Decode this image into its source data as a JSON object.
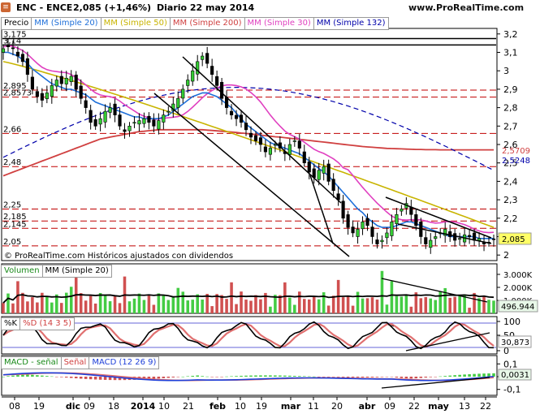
{
  "header": {
    "symbol": "ENC - ENCE",
    "price_change": "2,085 (+1,46%)",
    "period_date": "Diario  22 may 2014",
    "site": "www.ProRealTime.com"
  },
  "price_panel": {
    "legend": [
      "Precio",
      "MM (Simple 20)",
      "MM (Simple 50)",
      "MM (Simple 200)",
      "MM (Simple 30)",
      "MM (Simple 132)"
    ],
    "legend_colors": [
      "#000000",
      "#1e6fd9",
      "#c8b400",
      "#d04040",
      "#e040c0",
      "#0000aa"
    ],
    "footer_text": "© ProRealTime.com  Históricos ajustados con dividendos",
    "current_value": "2,085",
    "ma200_value": "2,5709",
    "ma132_value": "2,5248",
    "level_labels": [
      "3,175",
      "3,14",
      "2,895",
      "2,8573",
      "2,66",
      "2,48",
      "2,25",
      "2,185",
      "2,145",
      "2,05"
    ],
    "axis_ticks": [
      "3,2",
      "3,1",
      "3",
      "2,9",
      "2,8",
      "2,7",
      "2,6",
      "2,5",
      "2,4",
      "2,3",
      "2,2",
      "2,1",
      "2"
    ]
  },
  "volume_panel": {
    "legend": [
      "Volumen",
      "MM (Simple 20)"
    ],
    "current_value": "496.944",
    "axis_ticks": [
      "3.000K",
      "2.000K",
      "1.000K"
    ]
  },
  "stoch_panel": {
    "legend": [
      "%K",
      "%D (14 3 5)"
    ],
    "current_value": "30,873",
    "axis_ticks": [
      "100",
      "50",
      "0"
    ]
  },
  "macd_panel": {
    "legend": [
      "MACD - señal",
      "Señal",
      "MACD (12 26 9)"
    ],
    "current_value": "0,0031",
    "axis_ticks": [
      "0,1",
      "0",
      "-0,1"
    ]
  },
  "x_axis": {
    "labels": [
      "08",
      "19",
      "dic",
      "09",
      "18",
      "2014",
      "10",
      "21",
      "feb",
      "10",
      "19",
      "mar",
      "11",
      "20",
      "abr",
      "09",
      "22",
      "may",
      "13",
      "22"
    ]
  },
  "chart_data": {
    "type": "line",
    "title": "ENC - ENCE",
    "ylim": [
      1.97,
      3.23
    ],
    "close": [
      3.12,
      3.13,
      3.12,
      3.08,
      3.05,
      2.98,
      2.9,
      2.86,
      2.84,
      2.88,
      2.92,
      2.95,
      2.93,
      2.96,
      2.97,
      2.9,
      2.85,
      2.8,
      2.72,
      2.7,
      2.74,
      2.78,
      2.8,
      2.76,
      2.7,
      2.67,
      2.7,
      2.72,
      2.73,
      2.74,
      2.72,
      2.7,
      2.73,
      2.76,
      2.78,
      2.82,
      2.85,
      2.9,
      2.95,
      3.0,
      3.05,
      3.08,
      3.04,
      2.98,
      2.92,
      2.85,
      2.8,
      2.76,
      2.74,
      2.72,
      2.68,
      2.64,
      2.62,
      2.6,
      2.56,
      2.58,
      2.6,
      2.58,
      2.55,
      2.6,
      2.62,
      2.58,
      2.5,
      2.45,
      2.42,
      2.46,
      2.48,
      2.4,
      2.35,
      2.3,
      2.2,
      2.15,
      2.12,
      2.14,
      2.18,
      2.16,
      2.1,
      2.06,
      2.08,
      2.12,
      2.18,
      2.22,
      2.25,
      2.28,
      2.22,
      2.16,
      2.1,
      2.06,
      2.08,
      2.1,
      2.12,
      2.14,
      2.1,
      2.08,
      2.09,
      2.11,
      2.1,
      2.08,
      2.09,
      2.06,
      2.07,
      2.085
    ],
    "ma20": [
      3.1,
      3.1,
      3.09,
      3.08,
      3.06,
      3.04,
      3.01,
      2.99,
      2.97,
      2.95,
      2.93,
      2.92,
      2.91,
      2.9,
      2.9,
      2.89,
      2.88,
      2.87,
      2.85,
      2.83,
      2.82,
      2.81,
      2.8,
      2.79,
      2.78,
      2.77,
      2.76,
      2.75,
      2.75,
      2.74,
      2.74,
      2.74,
      2.74,
      2.75,
      2.76,
      2.78,
      2.8,
      2.82,
      2.84,
      2.86,
      2.87,
      2.88,
      2.88,
      2.87,
      2.86,
      2.84,
      2.82,
      2.8,
      2.77,
      2.74,
      2.71,
      2.69,
      2.67,
      2.65,
      2.63,
      2.61,
      2.6,
      2.59,
      2.58,
      2.57,
      2.56,
      2.55,
      2.53,
      2.51,
      2.49,
      2.47,
      2.45,
      2.43,
      2.4,
      2.37,
      2.34,
      2.31,
      2.28,
      2.25,
      2.23,
      2.2,
      2.18,
      2.16,
      2.15,
      2.15,
      2.15,
      2.16,
      2.17,
      2.18,
      2.18,
      2.17,
      2.16,
      2.15,
      2.14,
      2.13,
      2.12,
      2.11,
      2.1,
      2.1,
      2.1,
      2.1,
      2.1,
      2.1,
      2.09,
      2.09,
      2.09,
      2.09
    ],
    "ma200": [
      2.43,
      2.44,
      2.45,
      2.46,
      2.47,
      2.48,
      2.49,
      2.5,
      2.51,
      2.52,
      2.53,
      2.54,
      2.55,
      2.56,
      2.57,
      2.58,
      2.59,
      2.6,
      2.61,
      2.62,
      2.63,
      2.635,
      2.64,
      2.645,
      2.65,
      2.655,
      2.66,
      2.665,
      2.67,
      2.672,
      2.675,
      2.677,
      2.68,
      2.68,
      2.68,
      2.68,
      2.68,
      2.68,
      2.68,
      2.68,
      2.68,
      2.68,
      2.678,
      2.676,
      2.674,
      2.672,
      2.67,
      2.668,
      2.665,
      2.662,
      2.66,
      2.657,
      2.654,
      2.651,
      2.648,
      2.645,
      2.642,
      2.64,
      2.637,
      2.634,
      2.631,
      2.628,
      2.625,
      2.622,
      2.619,
      2.616,
      2.613,
      2.61,
      2.607,
      2.604,
      2.601,
      2.598,
      2.595,
      2.592,
      2.589,
      2.587,
      2.585,
      2.583,
      2.581,
      2.579,
      2.578,
      2.577,
      2.576,
      2.575,
      2.574,
      2.573,
      2.573,
      2.572,
      2.572,
      2.572,
      2.571,
      2.571,
      2.571,
      2.571,
      2.571,
      2.571,
      2.571,
      2.571,
      2.571,
      2.571,
      2.571,
      2.5709
    ]
  }
}
